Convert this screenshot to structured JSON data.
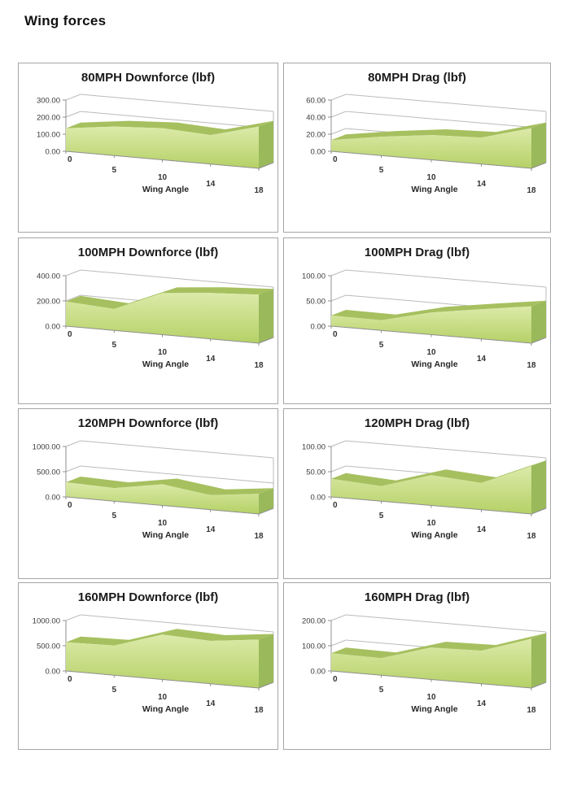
{
  "page": {
    "heading": "Wing forces"
  },
  "style": {
    "area_top_band": "#a6c05f",
    "area_face_top": "#dceaa9",
    "area_face_bottom": "#b5d166",
    "area_side": "#9ab95a",
    "grid_color": "#bbbbbb",
    "axis_color": "#8f8f8f",
    "panel_border": "#a6a6a6"
  },
  "chart_data": [
    {
      "type": "area",
      "title": "80MPH Downforce (lbf)",
      "xlabel": "Wing Angle",
      "categories": [
        "0",
        "5",
        "10",
        "14",
        "18"
      ],
      "values": [
        135,
        170,
        185,
        170,
        245
      ],
      "y_ticks": [
        "0.00",
        "100.00",
        "200.00",
        "300.00"
      ],
      "ylim": [
        0,
        300
      ],
      "grid": true,
      "legend": false
    },
    {
      "type": "area",
      "title": "80MPH Drag (lbf)",
      "xlabel": "Wing Angle",
      "categories": [
        "0",
        "5",
        "10",
        "14",
        "18"
      ],
      "values": [
        13,
        22,
        29,
        31,
        47
      ],
      "y_ticks": [
        "0.00",
        "20.00",
        "40.00",
        "60.00"
      ],
      "ylim": [
        0,
        60
      ],
      "grid": true,
      "legend": false
    },
    {
      "type": "area",
      "title": "100MPH Downforce (lbf)",
      "xlabel": "Wing Angle",
      "categories": [
        "0",
        "5",
        "10",
        "14",
        "18"
      ],
      "values": [
        195,
        170,
        330,
        365,
        385
      ],
      "y_ticks": [
        "0.00",
        "200.00",
        "400.00"
      ],
      "ylim": [
        0,
        400
      ],
      "grid": true,
      "legend": false
    },
    {
      "type": "area",
      "title": "100MPH Drag (lbf)",
      "xlabel": "Wing Angle",
      "categories": [
        "0",
        "5",
        "10",
        "14",
        "18"
      ],
      "values": [
        21,
        20,
        44,
        59,
        73
      ],
      "y_ticks": [
        "0.00",
        "50.00",
        "100.00"
      ],
      "ylim": [
        0,
        100
      ],
      "grid": true,
      "legend": false
    },
    {
      "type": "area",
      "title": "120MPH Downforce (lbf)",
      "xlabel": "Wing Angle",
      "categories": [
        "0",
        "5",
        "10",
        "14",
        "18"
      ],
      "values": [
        290,
        260,
        420,
        290,
        400
      ],
      "y_ticks": [
        "0.00",
        "500.00",
        "1000.00"
      ],
      "ylim": [
        0,
        1000
      ],
      "grid": true,
      "legend": false
    },
    {
      "type": "area",
      "title": "120MPH Drag (lbf)",
      "xlabel": "Wing Angle",
      "categories": [
        "0",
        "5",
        "10",
        "14",
        "18"
      ],
      "values": [
        36,
        30,
        60,
        53,
        95
      ],
      "y_ticks": [
        "0.00",
        "50.00",
        "100.00"
      ],
      "ylim": [
        0,
        100
      ],
      "grid": true,
      "legend": false
    },
    {
      "type": "area",
      "title": "160MPH Downforce (lbf)",
      "xlabel": "Wing Angle",
      "categories": [
        "0",
        "5",
        "10",
        "14",
        "18"
      ],
      "values": [
        570,
        590,
        890,
        850,
        960
      ],
      "y_ticks": [
        "0.00",
        "500.00",
        "1000.00"
      ],
      "ylim": [
        0,
        1000
      ],
      "grid": true,
      "legend": false
    },
    {
      "type": "area",
      "title": "160MPH Drag (lbf)",
      "xlabel": "Wing Angle",
      "categories": [
        "0",
        "5",
        "10",
        "14",
        "18"
      ],
      "values": [
        70,
        68,
        127,
        131,
        195
      ],
      "y_ticks": [
        "0.00",
        "100.00",
        "200.00"
      ],
      "ylim": [
        0,
        200
      ],
      "grid": true,
      "legend": false
    }
  ]
}
